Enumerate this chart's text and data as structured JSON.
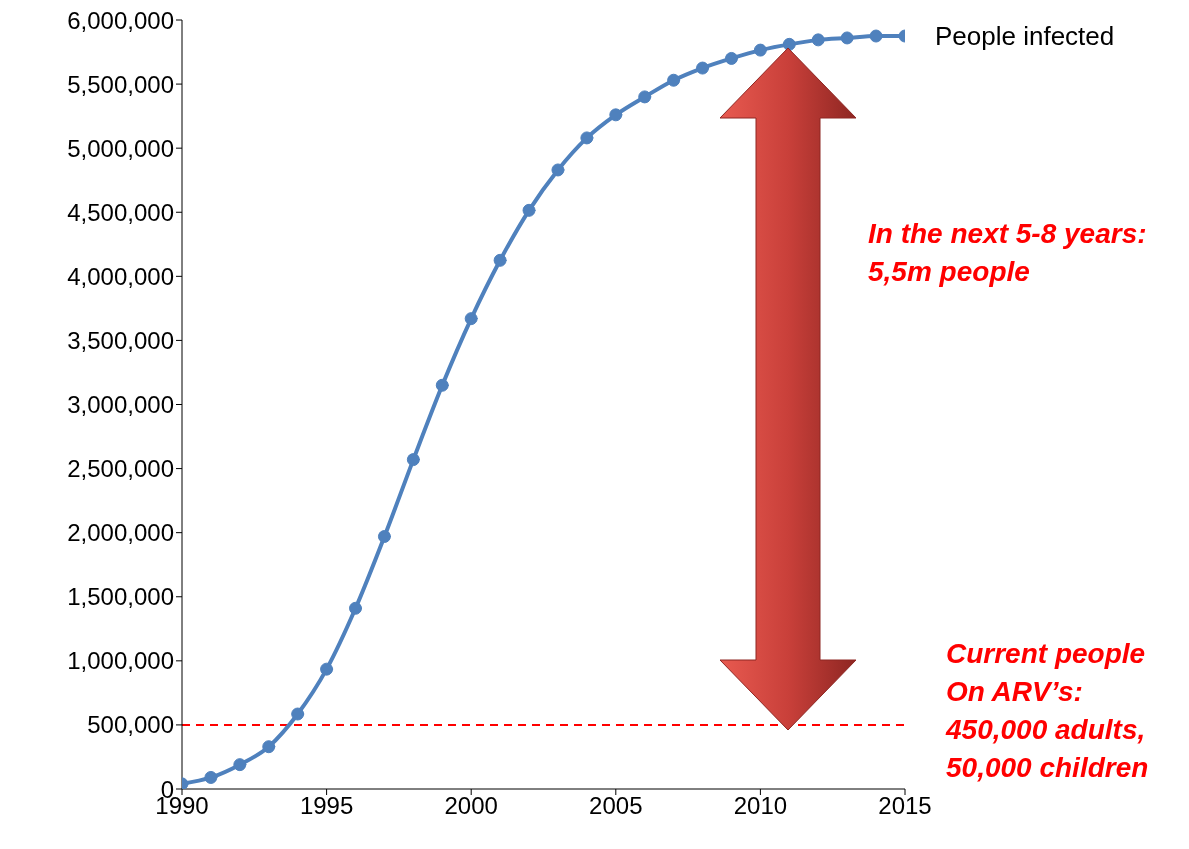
{
  "chart_data": {
    "type": "line",
    "x": [
      1990,
      1991,
      1992,
      1993,
      1994,
      1995,
      1996,
      1997,
      1998,
      1999,
      2000,
      2001,
      2002,
      2003,
      2004,
      2005,
      2006,
      2007,
      2008,
      2009,
      2010,
      2011,
      2012,
      2013,
      2014,
      2015
    ],
    "series": [
      {
        "name": "People infected",
        "color": "#4f81bd",
        "values": [
          40000,
          90000,
          190000,
          330000,
          585000,
          935000,
          1410000,
          1970000,
          2570000,
          3150000,
          3670000,
          4125000,
          4515000,
          4830000,
          5080000,
          5260000,
          5400000,
          5530000,
          5625000,
          5700000,
          5765000,
          5810000,
          5845000,
          5860000,
          5875000,
          5875000
        ]
      }
    ],
    "xlim": [
      1990,
      2015
    ],
    "xticks": [
      1990,
      1995,
      2000,
      2005,
      2010,
      2015
    ],
    "ylim": [
      0,
      6000000
    ],
    "yticks": [
      {
        "value": 0,
        "label": "0"
      },
      {
        "value": 500000,
        "label": "500,000"
      },
      {
        "value": 1000000,
        "label": "1,000,000"
      },
      {
        "value": 1500000,
        "label": "1,500,000"
      },
      {
        "value": 2000000,
        "label": "2,000,000"
      },
      {
        "value": 2500000,
        "label": "2,500,000"
      },
      {
        "value": 3000000,
        "label": "3,000,000"
      },
      {
        "value": 3500000,
        "label": "3,500,000"
      },
      {
        "value": 4000000,
        "label": "4,000,000"
      },
      {
        "value": 4500000,
        "label": "4,500,000"
      },
      {
        "value": 5000000,
        "label": "5,000,000"
      },
      {
        "value": 5500000,
        "label": "5,500,000"
      },
      {
        "value": 6000000,
        "label": "6,000,000"
      }
    ],
    "grid": false,
    "legend": false,
    "marker": "circle",
    "line_style": "solid",
    "ref_lines": [
      {
        "axis": "y",
        "value": 500000,
        "color": "#ff0000",
        "line_style": "dashed"
      }
    ],
    "annotations": [
      "In the next 5-8 years: 5,5m people",
      "Current people On ARV’s: 450,000 adults, 50,000 children"
    ]
  }
}
